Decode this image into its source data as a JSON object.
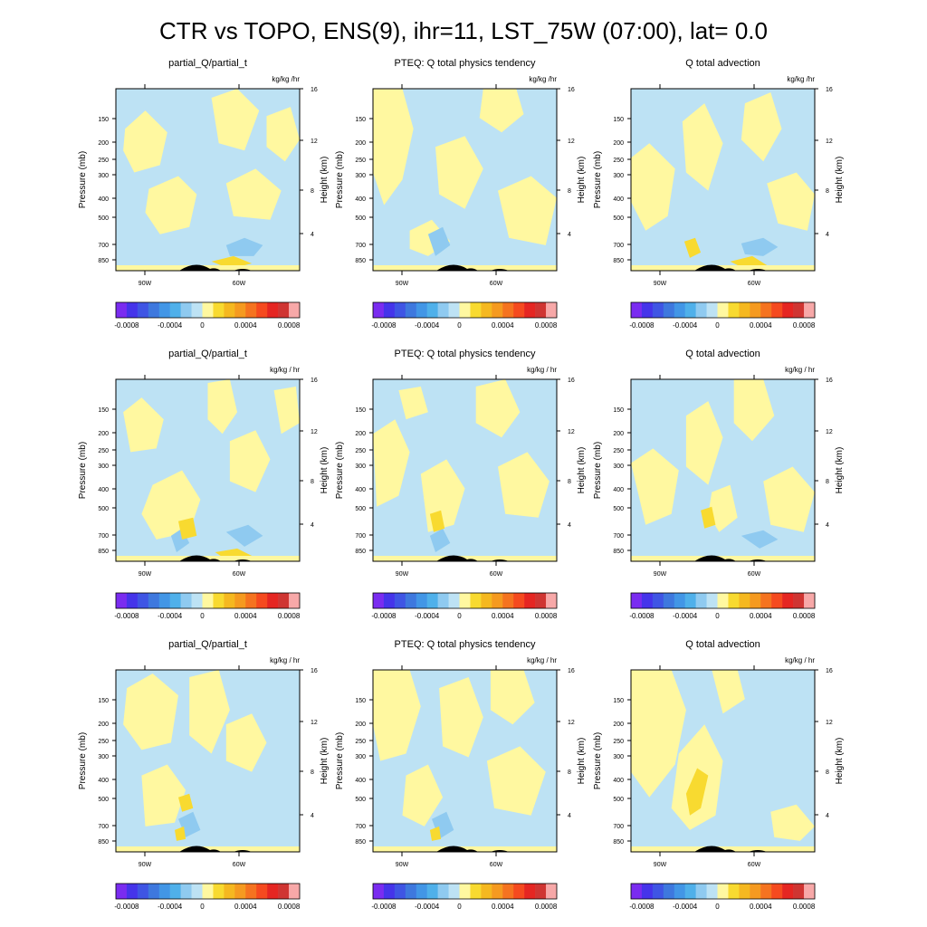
{
  "main_title": "CTR vs TOPO, ENS(9), ihr=11, LST_75W (07:00), lat=  0.0",
  "colors": {
    "neg_light": "#bde2f4",
    "pos_light": "#fff8a0",
    "neg_mid": "#8fcaf0",
    "neg_strong": "#4fb0ea",
    "pos_mid": "#f8da30",
    "pos_strong": "#f5b820",
    "terrain": "#000000"
  },
  "colorbar": {
    "colors": [
      "#7a2cf0",
      "#4534ea",
      "#3f55e4",
      "#3e78de",
      "#4296e6",
      "#4fb0ea",
      "#8fcaf0",
      "#bde2f4",
      "#fff8a0",
      "#f8da30",
      "#f5b820",
      "#f59a20",
      "#f57320",
      "#f54a1f",
      "#e52622",
      "#cf3532",
      "#f7a8a8"
    ],
    "tick_labels": [
      "-0.0008",
      "-0.0004",
      "0",
      "0.0004",
      "0.0008"
    ]
  },
  "chart_data": [
    {
      "type": "heatmap",
      "title": "partial_Q/partial_t",
      "units": "kg/kg /hr",
      "ylabel": "Pressure (mb)",
      "y2label": "Height (km)",
      "pressure_ticks": [
        "150",
        "200",
        "250",
        "300",
        "400",
        "500",
        "700",
        "850"
      ],
      "height_ticks": [
        "16",
        "12",
        "8",
        "4"
      ],
      "lon_ticks": [
        "90W",
        "60W"
      ],
      "colorbar_ticks": [
        "-0.0008",
        "-0.0004",
        "0",
        "0.0004",
        "0.0008"
      ]
    },
    {
      "type": "heatmap",
      "title": "PTEQ: Q total physics tendency",
      "units": "kg/kg /hr",
      "ylabel": "Pressure (mb)",
      "y2label": "Height (km)",
      "pressure_ticks": [
        "150",
        "200",
        "250",
        "300",
        "400",
        "500",
        "700",
        "850"
      ],
      "height_ticks": [
        "16",
        "12",
        "8",
        "4"
      ],
      "lon_ticks": [
        "90W",
        "60W"
      ],
      "colorbar_ticks": [
        "-0.0008",
        "-0.0004",
        "0",
        "0.0004",
        "0.0008"
      ]
    },
    {
      "type": "heatmap",
      "title": "Q total advection",
      "units": "kg/kg /hr",
      "ylabel": "Pressure (mb)",
      "y2label": "Height (km)",
      "pressure_ticks": [
        "150",
        "200",
        "250",
        "300",
        "400",
        "500",
        "700",
        "850"
      ],
      "height_ticks": [
        "16",
        "12",
        "8",
        "4"
      ],
      "lon_ticks": [
        "90W",
        "60W"
      ],
      "colorbar_ticks": [
        "-0.0008",
        "-0.0004",
        "0",
        "0.0004",
        "0.0008"
      ]
    },
    {
      "type": "heatmap",
      "title": "partial_Q/partial_t",
      "units": "kg/kg / hr",
      "ylabel": "Pressure (mb)",
      "y2label": "Height (km)",
      "pressure_ticks": [
        "150",
        "200",
        "250",
        "300",
        "400",
        "500",
        "700",
        "850"
      ],
      "height_ticks": [
        "16",
        "12",
        "8",
        "4"
      ],
      "lon_ticks": [
        "90W",
        "60W"
      ],
      "colorbar_ticks": [
        "-0.0008",
        "-0.0004",
        "0",
        "0.0004",
        "0.0008"
      ]
    },
    {
      "type": "heatmap",
      "title": "PTEQ: Q total physics tendency",
      "units": "kg/kg / hr",
      "ylabel": "Pressure (mb)",
      "y2label": "Height (km)",
      "pressure_ticks": [
        "150",
        "200",
        "250",
        "300",
        "400",
        "500",
        "700",
        "850"
      ],
      "height_ticks": [
        "16",
        "12",
        "8",
        "4"
      ],
      "lon_ticks": [
        "90W",
        "60W"
      ],
      "colorbar_ticks": [
        "-0.0008",
        "-0.0004",
        "0",
        "0.0004",
        "0.0008"
      ]
    },
    {
      "type": "heatmap",
      "title": "Q total advection",
      "units": "kg/kg / hr",
      "ylabel": "Pressure (mb)",
      "y2label": "Height (km)",
      "pressure_ticks": [
        "150",
        "200",
        "250",
        "300",
        "400",
        "500",
        "700",
        "850"
      ],
      "height_ticks": [
        "16",
        "12",
        "8",
        "4"
      ],
      "lon_ticks": [
        "90W",
        "60W"
      ],
      "colorbar_ticks": [
        "-0.0008",
        "-0.0004",
        "0",
        "0.0004",
        "0.0008"
      ]
    },
    {
      "type": "heatmap",
      "title": "partial_Q/partial_t",
      "units": "kg/kg / hr",
      "ylabel": "Pressure (mb)",
      "y2label": "Height (km)",
      "pressure_ticks": [
        "150",
        "200",
        "250",
        "300",
        "400",
        "500",
        "700",
        "850"
      ],
      "height_ticks": [
        "16",
        "12",
        "8",
        "4"
      ],
      "lon_ticks": [
        "90W",
        "60W"
      ],
      "colorbar_ticks": [
        "-0.0008",
        "-0.0004",
        "0",
        "0.0004",
        "0.0008"
      ]
    },
    {
      "type": "heatmap",
      "title": "PTEQ: Q total physics tendency",
      "units": "kg/kg / hr",
      "ylabel": "Pressure (mb)",
      "y2label": "Height (km)",
      "pressure_ticks": [
        "150",
        "200",
        "250",
        "300",
        "400",
        "500",
        "700",
        "850"
      ],
      "height_ticks": [
        "16",
        "12",
        "8",
        "4"
      ],
      "lon_ticks": [
        "90W",
        "60W"
      ],
      "colorbar_ticks": [
        "-0.0008",
        "-0.0004",
        "0",
        "0.0004",
        "0.0008"
      ]
    },
    {
      "type": "heatmap",
      "title": "Q total advection",
      "units": "kg/kg / hr",
      "ylabel": "Pressure (mb)",
      "y2label": "Height (km)",
      "pressure_ticks": [
        "150",
        "200",
        "250",
        "300",
        "400",
        "500",
        "700",
        "850"
      ],
      "height_ticks": [
        "16",
        "12",
        "8",
        "4"
      ],
      "lon_ticks": [
        "90W",
        "60W"
      ],
      "colorbar_ticks": [
        "-0.0008",
        "-0.0004",
        "0",
        "0.0004",
        "0.0008"
      ]
    }
  ]
}
